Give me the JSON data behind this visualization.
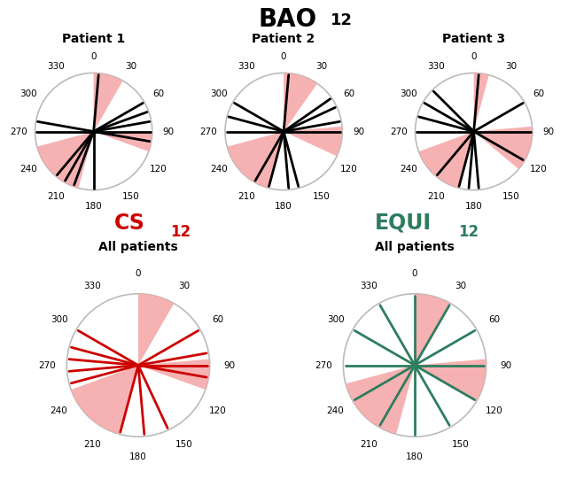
{
  "pink_color": "#F5AAAA",
  "pink_alpha": 0.9,
  "line_color_bao": "black",
  "line_color_cs": "#CC0000",
  "line_color_equi": "#2E7D5E",
  "tick_labels": [
    0,
    30,
    60,
    90,
    120,
    150,
    180,
    210,
    240,
    270,
    300,
    330
  ],
  "patient1_lines": [
    5,
    60,
    70,
    80,
    90,
    100,
    180,
    200,
    210,
    220,
    270,
    280
  ],
  "patient1_wedges": [
    {
      "theta1": 0,
      "theta2": 30
    },
    {
      "theta1": 90,
      "theta2": 110
    },
    {
      "theta1": 195,
      "theta2": 255
    }
  ],
  "patient2_lines": [
    5,
    55,
    65,
    80,
    90,
    165,
    175,
    195,
    210,
    270,
    285,
    300
  ],
  "patient2_wedges": [
    {
      "theta1": 0,
      "theta2": 35
    },
    {
      "theta1": 85,
      "theta2": 115
    },
    {
      "theta1": 195,
      "theta2": 255
    }
  ],
  "patient3_lines": [
    5,
    60,
    90,
    120,
    175,
    185,
    195,
    220,
    270,
    285,
    300,
    315
  ],
  "patient3_wedges": [
    {
      "theta1": 0,
      "theta2": 15
    },
    {
      "theta1": 85,
      "theta2": 130
    },
    {
      "theta1": 195,
      "theta2": 250
    }
  ],
  "cs_lines": [
    60,
    80,
    90,
    100,
    155,
    175,
    195,
    255,
    265,
    275,
    285,
    300
  ],
  "cs_wedges": [
    {
      "theta1": 0,
      "theta2": 30
    },
    {
      "theta1": 85,
      "theta2": 110
    },
    {
      "theta1": 195,
      "theta2": 250
    }
  ],
  "equi_lines": [
    30,
    60,
    90,
    120,
    150,
    180,
    210,
    240,
    270,
    300,
    330,
    0
  ],
  "equi_wedges": [
    {
      "theta1": 0,
      "theta2": 30
    },
    {
      "theta1": 85,
      "theta2": 120
    },
    {
      "theta1": 195,
      "theta2": 255
    }
  ],
  "bg_color": "white",
  "circle_color": "#BBBBBB"
}
